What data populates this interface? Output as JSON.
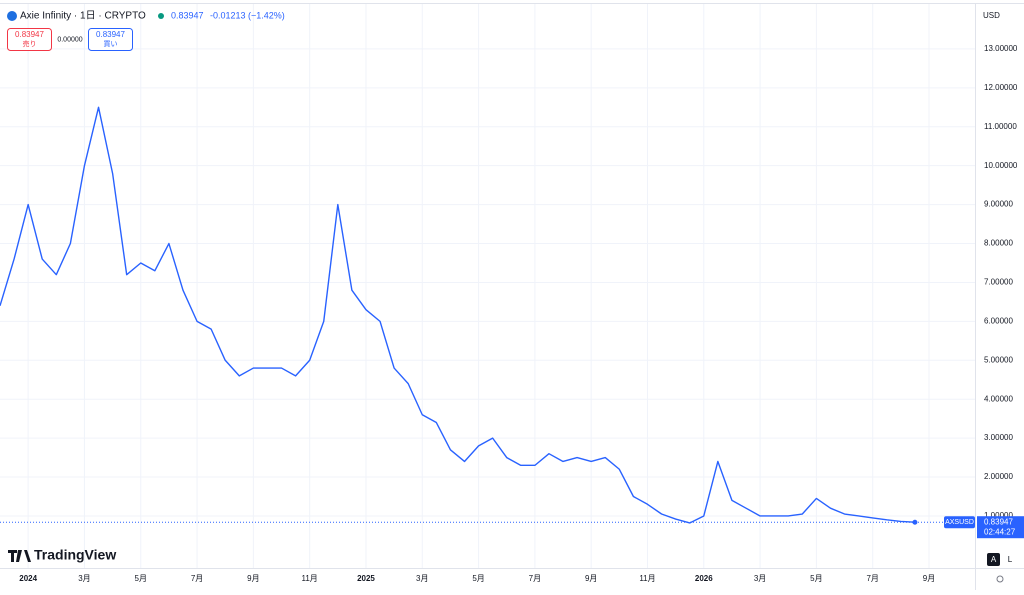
{
  "chart_data": {
    "type": "line",
    "title": "Axie Infinity · 1日 · CRYPTO",
    "last_price": 0.83947,
    "change": "-0.01213 (−1.42%)",
    "sell_price": "0.83947",
    "sell_label": "売り",
    "spread": "0.00000",
    "buy_price": "0.83947",
    "buy_label": "買い",
    "currency": "USD",
    "brand": "TradingView",
    "countdown": "02:44:27",
    "scale_buttons": [
      "A",
      "L"
    ],
    "categories": [
      null,
      null,
      "2024",
      null,
      null,
      null,
      "3月",
      null,
      null,
      null,
      "5月",
      null,
      null,
      null,
      "7月",
      null,
      null,
      null,
      "9月",
      null,
      null,
      null,
      "11月",
      null,
      null,
      null,
      "2025",
      null,
      null,
      null,
      "3月",
      null,
      null,
      null,
      "5月",
      null,
      null,
      null,
      "7月",
      null,
      null,
      null,
      "9月",
      null,
      null,
      null,
      "11月",
      null,
      null,
      null,
      "2026",
      null,
      null,
      null,
      "3月",
      null,
      null,
      null,
      "5月",
      null,
      null,
      null,
      "7月",
      null,
      null,
      null,
      "9月",
      null
    ],
    "series": [
      {
        "name": "AXSUSD",
        "color": "#2962ff",
        "values": [
          6.4,
          7.6,
          9.0,
          7.6,
          7.2,
          8.0,
          10.0,
          11.5,
          9.8,
          7.2,
          7.5,
          7.3,
          8.0,
          6.8,
          6.0,
          5.8,
          5.0,
          4.6,
          4.8,
          4.8,
          4.8,
          4.6,
          5.0,
          6.0,
          9.0,
          6.8,
          6.3,
          6.0,
          4.8,
          4.4,
          3.6,
          3.4,
          2.7,
          2.4,
          2.8,
          3.0,
          2.5,
          2.3,
          2.3,
          2.6,
          2.4,
          2.5,
          2.4,
          2.5,
          2.2,
          1.5,
          1.3,
          1.05,
          0.92,
          0.82,
          1.0,
          2.4,
          1.4,
          1.2,
          1.0,
          1.0,
          1.0,
          1.05,
          1.45,
          1.2,
          1.05,
          1.0,
          0.95,
          0.9,
          0.86,
          0.83947,
          null,
          null
        ]
      }
    ],
    "ylim": [
      -0.26,
      14.0
    ],
    "yticks": [
      {
        "value": 1,
        "label": "1.00000"
      },
      {
        "value": 2,
        "label": "2.00000"
      },
      {
        "value": 3,
        "label": "3.00000"
      },
      {
        "value": 4,
        "label": "4.00000"
      },
      {
        "value": 5,
        "label": "5.00000"
      },
      {
        "value": 6,
        "label": "6.00000"
      },
      {
        "value": 7,
        "label": "7.00000"
      },
      {
        "value": 8,
        "label": "8.00000"
      },
      {
        "value": 9,
        "label": "9.00000"
      },
      {
        "value": 10,
        "label": "10.00000"
      },
      {
        "value": 11,
        "label": "11.00000"
      },
      {
        "value": 12,
        "label": "12.00000"
      },
      {
        "value": 13,
        "label": "13.00000"
      }
    ],
    "grid": true
  }
}
